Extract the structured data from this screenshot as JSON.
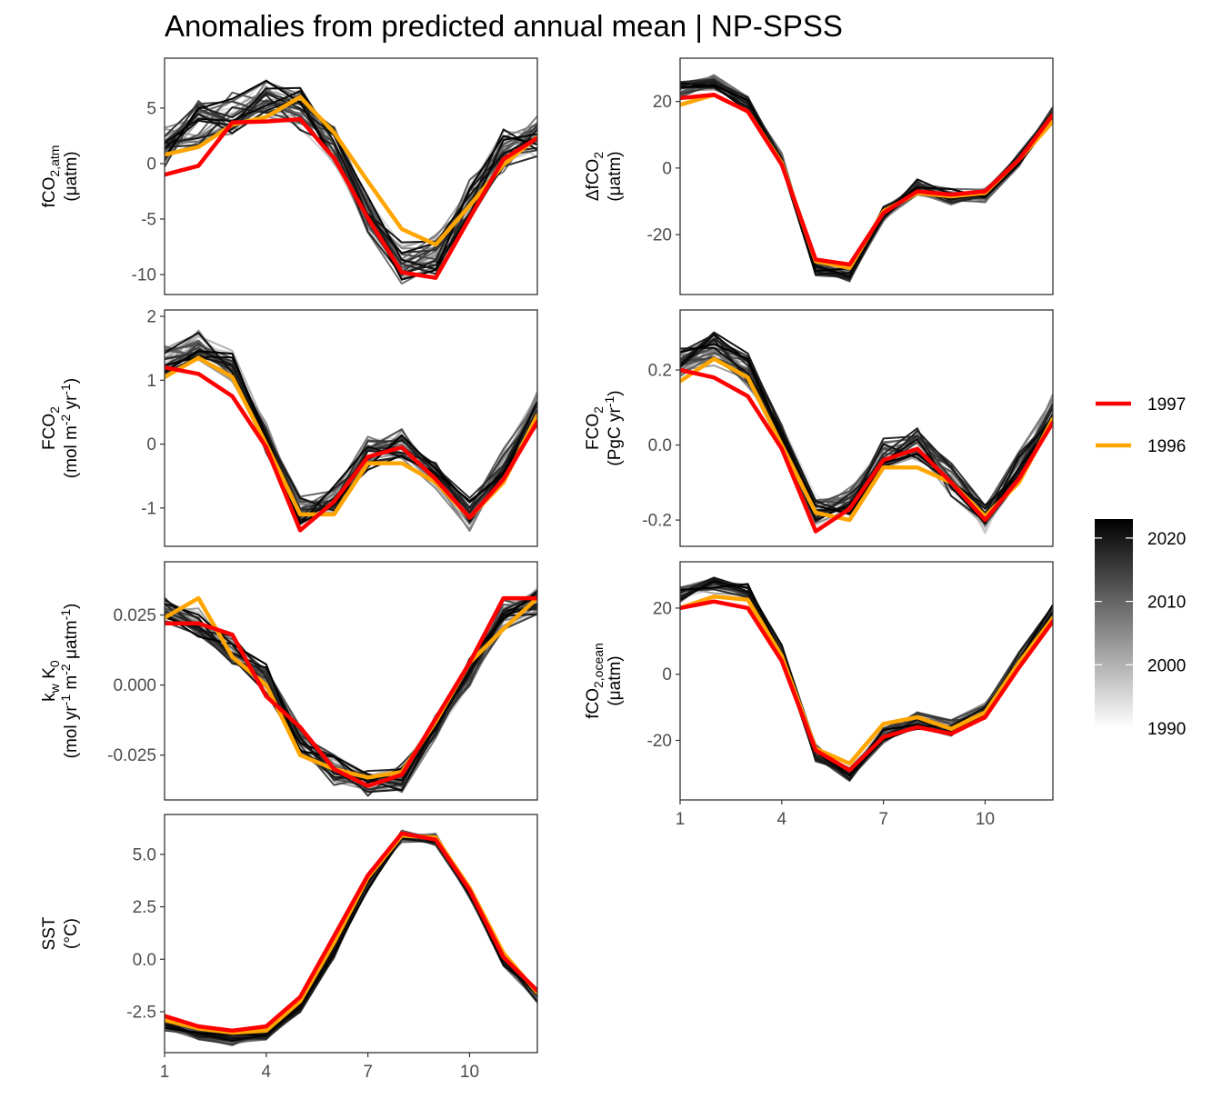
{
  "title": "Anomalies from predicted annual mean | NP-SPSS",
  "legend": {
    "highlight": [
      {
        "name": "1997",
        "color": "#ff0000"
      },
      {
        "name": "1996",
        "color": "#ffa500"
      }
    ],
    "colorbar": {
      "ticks": [
        2020,
        2010,
        2000,
        1990
      ],
      "range": [
        1990,
        2023
      ],
      "low_color": "#ffffff",
      "high_color": "#000000"
    }
  },
  "chart_data": [
    {
      "type": "line",
      "panel": "fCO2,atm",
      "ylabel_parts": [
        [
          "fCO",
          "2,atm",
          ""
        ],
        [
          "(μatm)"
        ]
      ],
      "x": [
        1,
        2,
        3,
        4,
        5,
        6,
        7,
        8,
        9,
        10,
        11,
        12
      ],
      "xlim": [
        1,
        12
      ],
      "ylim": [
        -11.8,
        9.5
      ],
      "yticks": [
        {
          "v": 5,
          "label": "5"
        },
        {
          "v": 0,
          "label": "0"
        },
        {
          "v": -5,
          "label": "-5"
        },
        {
          "v": -10,
          "label": "-10"
        }
      ],
      "show_xaxis": false,
      "background": {
        "mean": [
          1.5,
          3.6,
          4.5,
          5.7,
          5.0,
          1.5,
          -4.7,
          -9.2,
          -8.3,
          -3.6,
          1.2,
          2.4
        ],
        "spread": 2.2
      },
      "series": [
        {
          "name": "1996",
          "values": [
            0.8,
            1.5,
            3.5,
            4.2,
            6.0,
            2.8,
            -1.6,
            -5.9,
            -7.3,
            -3.8,
            -0.1,
            2.4
          ]
        },
        {
          "name": "1997",
          "values": [
            -1.0,
            -0.2,
            3.7,
            3.8,
            4.0,
            0.5,
            -4.9,
            -9.8,
            -10.3,
            -4.9,
            0.4,
            2.3
          ]
        }
      ]
    },
    {
      "type": "line",
      "panel": "ΔfCO2",
      "ylabel_parts": [
        [
          "ΔfCO",
          "2",
          ""
        ],
        [
          "(μatm)"
        ]
      ],
      "x": [
        1,
        2,
        3,
        4,
        5,
        6,
        7,
        8,
        9,
        10,
        11,
        12
      ],
      "xlim": [
        1,
        12
      ],
      "ylim": [
        -38,
        33
      ],
      "yticks": [
        {
          "v": 20,
          "label": "20"
        },
        {
          "v": 0,
          "label": "0"
        },
        {
          "v": -20,
          "label": "-20"
        }
      ],
      "show_xaxis": false,
      "background": {
        "mean": [
          23.7,
          25.8,
          19.3,
          2.3,
          -30.4,
          -31.7,
          -13.8,
          -5.8,
          -8.6,
          -8.0,
          2.7,
          16.2
        ],
        "spread": 2.5
      },
      "series": [
        {
          "name": "1996",
          "values": [
            19.0,
            22.0,
            17.0,
            1.5,
            -28.0,
            -30.0,
            -13.0,
            -7.5,
            -8.5,
            -7.5,
            2.5,
            14.0
          ]
        },
        {
          "name": "1997",
          "values": [
            21.0,
            22.0,
            17.0,
            1.0,
            -27.5,
            -29.0,
            -13.5,
            -7.0,
            -8.0,
            -7.0,
            2.5,
            16.0
          ]
        }
      ]
    },
    {
      "type": "line",
      "panel": "FCO2",
      "ylabel_parts": [
        [
          "FCO",
          "2",
          ""
        ],
        [
          "(mol m",
          "-2",
          " yr",
          "-1",
          ")"
        ]
      ],
      "x": [
        1,
        2,
        3,
        4,
        5,
        6,
        7,
        8,
        9,
        10,
        11,
        12
      ],
      "xlim": [
        1,
        12
      ],
      "ylim": [
        -1.6,
        2.1
      ],
      "yticks": [
        {
          "v": 2,
          "label": "2"
        },
        {
          "v": 1,
          "label": "1"
        },
        {
          "v": 0,
          "label": "0"
        },
        {
          "v": -1,
          "label": "-1"
        }
      ],
      "show_xaxis": false,
      "background": {
        "mean": [
          1.3,
          1.55,
          1.2,
          0.1,
          -1.05,
          -0.9,
          -0.15,
          0.0,
          -0.5,
          -1.1,
          -0.35,
          0.55
        ],
        "spread": 0.28
      },
      "series": [
        {
          "name": "1996",
          "values": [
            1.05,
            1.35,
            1.05,
            0.0,
            -1.1,
            -1.1,
            -0.3,
            -0.3,
            -0.6,
            -1.15,
            -0.6,
            0.45
          ]
        },
        {
          "name": "1997",
          "values": [
            1.2,
            1.1,
            0.75,
            -0.05,
            -1.35,
            -0.9,
            -0.2,
            -0.05,
            -0.55,
            -1.15,
            -0.55,
            0.35
          ]
        }
      ]
    },
    {
      "type": "line",
      "panel": "FCO2 PgC",
      "ylabel_parts": [
        [
          "FCO",
          "2",
          ""
        ],
        [
          "(PgC yr",
          "-1",
          ")"
        ]
      ],
      "x": [
        1,
        2,
        3,
        4,
        5,
        6,
        7,
        8,
        9,
        10,
        11,
        12
      ],
      "xlim": [
        1,
        12
      ],
      "ylim": [
        -0.27,
        0.36
      ],
      "yticks": [
        {
          "v": 0.2,
          "label": "0.2"
        },
        {
          "v": 0.0,
          "label": "0.0"
        },
        {
          "v": -0.2,
          "label": "-0.2"
        }
      ],
      "show_xaxis": false,
      "background": {
        "mean": [
          0.22,
          0.26,
          0.2,
          0.02,
          -0.18,
          -0.16,
          -0.03,
          0.0,
          -0.09,
          -0.19,
          -0.06,
          0.09
        ],
        "spread": 0.05
      },
      "series": [
        {
          "name": "1996",
          "values": [
            0.17,
            0.23,
            0.18,
            0.0,
            -0.18,
            -0.2,
            -0.06,
            -0.06,
            -0.1,
            -0.19,
            -0.1,
            0.07
          ]
        },
        {
          "name": "1997",
          "values": [
            0.2,
            0.18,
            0.13,
            -0.01,
            -0.23,
            -0.17,
            -0.04,
            -0.01,
            -0.1,
            -0.2,
            -0.09,
            0.06
          ]
        }
      ]
    },
    {
      "type": "line",
      "panel": "kw K0",
      "ylabel_parts": [
        [
          "k",
          "w",
          " K",
          "0",
          ""
        ],
        [
          "(mol yr",
          "-1",
          " m",
          "-2",
          " μatm",
          "-1",
          ")"
        ]
      ],
      "x": [
        1,
        2,
        3,
        4,
        5,
        6,
        7,
        8,
        9,
        10,
        11,
        12
      ],
      "xlim": [
        1,
        12
      ],
      "ylim": [
        -0.041,
        0.044
      ],
      "yticks": [
        {
          "v": 0.025,
          "label": "0.025"
        },
        {
          "v": 0.0,
          "label": "0.000"
        },
        {
          "v": -0.025,
          "label": "-0.025"
        }
      ],
      "show_xaxis": false,
      "background": {
        "mean": [
          0.027,
          0.022,
          0.012,
          0.002,
          -0.02,
          -0.03,
          -0.035,
          -0.033,
          -0.015,
          0.005,
          0.025,
          0.03
        ],
        "spread": 0.006
      },
      "series": [
        {
          "name": "1996",
          "values": [
            0.024,
            0.031,
            0.01,
            0.0,
            -0.025,
            -0.03,
            -0.033,
            -0.031,
            -0.013,
            0.008,
            0.02,
            0.031
          ]
        },
        {
          "name": "1997",
          "values": [
            0.022,
            0.022,
            0.018,
            -0.004,
            -0.015,
            -0.03,
            -0.036,
            -0.032,
            -0.012,
            0.008,
            0.031,
            0.031
          ]
        }
      ]
    },
    {
      "type": "line",
      "panel": "fCO2,ocean",
      "ylabel_parts": [
        [
          "fCO",
          "2,ocean",
          ""
        ],
        [
          "(μatm)"
        ]
      ],
      "x": [
        1,
        2,
        3,
        4,
        5,
        6,
        7,
        8,
        9,
        10,
        11,
        12
      ],
      "xlim": [
        1,
        12
      ],
      "ylim": [
        -38,
        34
      ],
      "yticks": [
        {
          "v": 20,
          "label": "20"
        },
        {
          "v": 0,
          "label": "0"
        },
        {
          "v": -20,
          "label": "-20"
        }
      ],
      "xticks": [
        {
          "v": 1,
          "label": "1"
        },
        {
          "v": 4,
          "label": "4"
        },
        {
          "v": 7,
          "label": "7"
        },
        {
          "v": 10,
          "label": "10"
        }
      ],
      "show_xaxis": true,
      "background": {
        "mean": [
          24.5,
          27.0,
          25.0,
          6.5,
          -24.0,
          -30.5,
          -18.0,
          -14.0,
          -16.5,
          -11.0,
          4.0,
          19.0
        ],
        "spread": 3.0
      },
      "series": [
        {
          "name": "1996",
          "values": [
            20.0,
            23.5,
            22.5,
            5.5,
            -22.5,
            -27.0,
            -15.0,
            -13.0,
            -16.5,
            -11.5,
            3.5,
            17.0
          ]
        },
        {
          "name": "1997",
          "values": [
            20.0,
            22.0,
            20.0,
            4.0,
            -23.0,
            -29.0,
            -19.0,
            -16.0,
            -18.0,
            -13.0,
            2.0,
            16.0
          ]
        }
      ]
    },
    {
      "type": "line",
      "panel": "SST",
      "ylabel_parts": [
        [
          "SST"
        ],
        [
          "(°C)"
        ]
      ],
      "x": [
        1,
        2,
        3,
        4,
        5,
        6,
        7,
        8,
        9,
        10,
        11,
        12
      ],
      "xlim": [
        1,
        12
      ],
      "ylim": [
        -4.45,
        6.9
      ],
      "yticks": [
        {
          "v": 5.0,
          "label": "5.0"
        },
        {
          "v": 2.5,
          "label": "2.5"
        },
        {
          "v": 0.0,
          "label": "0.0"
        },
        {
          "v": -2.5,
          "label": "-2.5"
        }
      ],
      "xticks": [
        {
          "v": 1,
          "label": "1"
        },
        {
          "v": 4,
          "label": "4"
        },
        {
          "v": 7,
          "label": "7"
        },
        {
          "v": 10,
          "label": "10"
        }
      ],
      "show_xaxis": true,
      "background": {
        "mean": [
          -3.1,
          -3.6,
          -3.8,
          -3.6,
          -2.3,
          0.4,
          3.6,
          5.9,
          5.7,
          3.2,
          0.0,
          -1.8
        ],
        "spread": 0.35
      },
      "series": [
        {
          "name": "1996",
          "values": [
            -2.9,
            -3.3,
            -3.5,
            -3.4,
            -2.0,
            0.8,
            3.9,
            5.9,
            5.8,
            3.4,
            0.3,
            -1.6
          ]
        },
        {
          "name": "1997",
          "values": [
            -2.7,
            -3.2,
            -3.4,
            -3.2,
            -1.8,
            1.1,
            4.0,
            6.0,
            5.7,
            3.3,
            0.1,
            -1.5
          ]
        }
      ]
    }
  ]
}
